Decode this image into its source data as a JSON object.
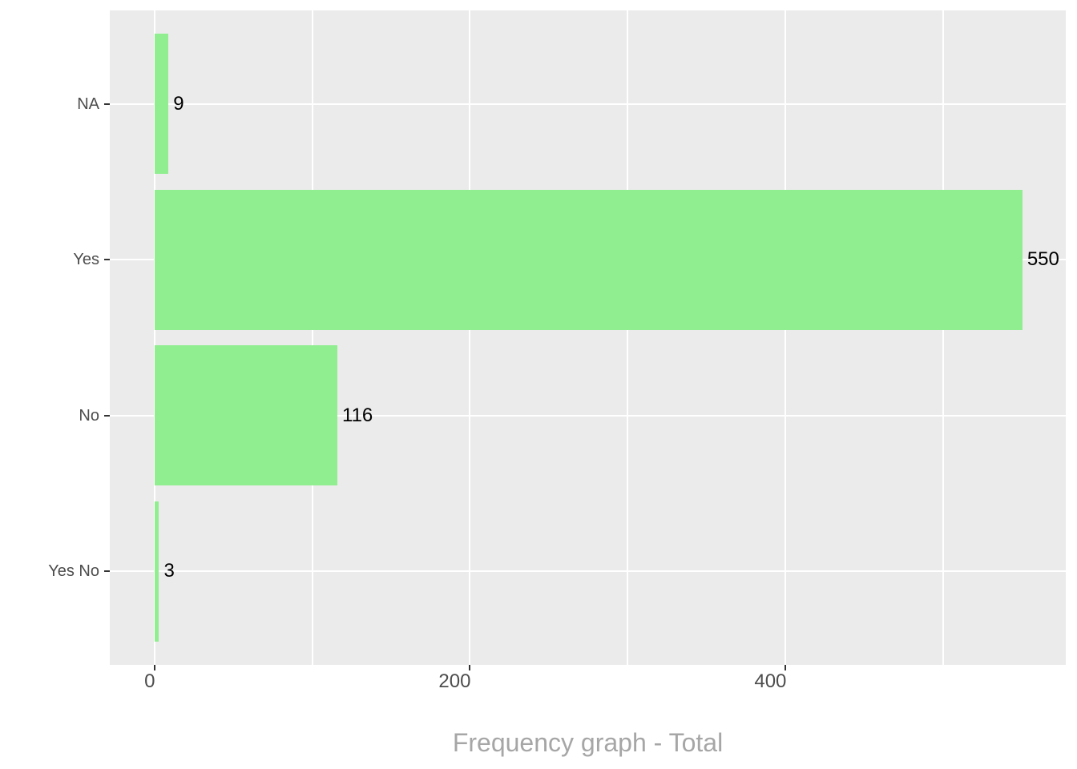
{
  "chart_data": {
    "type": "bar",
    "orientation": "horizontal",
    "categories": [
      "NA",
      "Yes",
      "No",
      "Yes No"
    ],
    "values": [
      9,
      550,
      116,
      3
    ],
    "bar_labels": [
      "9",
      "550",
      "116",
      "3"
    ],
    "title": "",
    "xlabel": "Frequency graph - Total",
    "ylabel": "",
    "x_ticks": [
      0,
      200,
      400
    ],
    "x_tick_labels": [
      "0",
      "200",
      "400"
    ],
    "x_minor_gridlines": [
      100,
      300,
      500
    ],
    "x_axis_range": [
      -28.2,
      577.5
    ],
    "data_range": [
      0,
      550
    ],
    "bar_width_fraction": 0.9,
    "grid": true,
    "legend": false,
    "colors": {
      "bar_fill": "#90EE90",
      "panel_background": "#EBEBEB",
      "gridline": "#FFFFFF",
      "axis_text": "#4D4D4D",
      "tick_mark": "#333333",
      "bar_label_text": "#000000",
      "axis_title_text": "#A6A6A6",
      "page_background": "#FFFFFF"
    }
  }
}
